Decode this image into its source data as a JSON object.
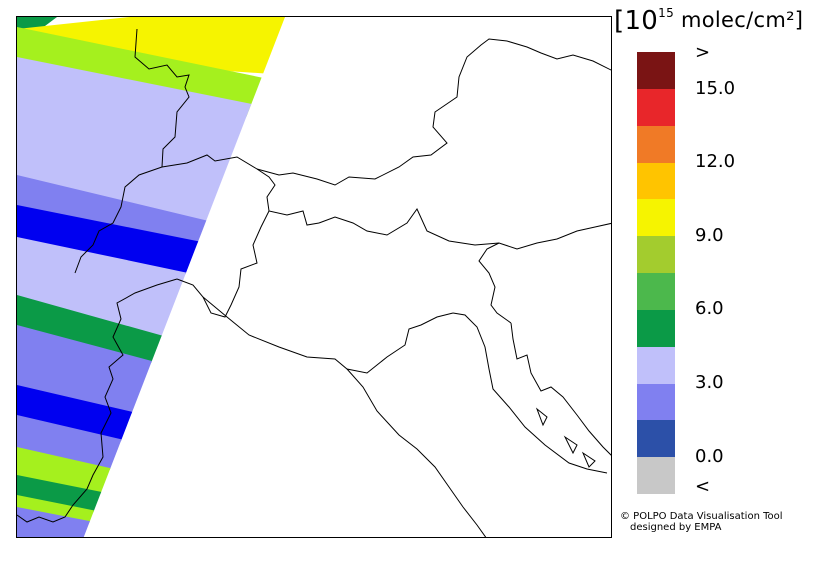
{
  "legend": {
    "unit_prefix": "[10",
    "unit_exponent": "15",
    "unit_suffix": " molec/cm²]",
    "colors": [
      "#7a1414",
      "#e8262a",
      "#f07a26",
      "#ffc400",
      "#f6f400",
      "#a3cc2e",
      "#4cb84c",
      "#0b9a47",
      "#c0c0fa",
      "#8080f0",
      "#2c50a8",
      "#c8c8c8"
    ],
    "tick_labels": [
      ">",
      "15.0",
      "12.0",
      "9.0",
      "6.0",
      "3.0",
      "0.0",
      "<"
    ]
  },
  "swaths": {
    "yellow": "#f6f400",
    "lime": "#a5f01e",
    "lavender": "#c0c0fa",
    "periwinkle": "#8080f0",
    "blue": "#0000f0",
    "green": "#0b9a47"
  },
  "credit": {
    "line1": "© POLPO Data Visualisation Tool",
    "line2": "designed by EMPA"
  }
}
